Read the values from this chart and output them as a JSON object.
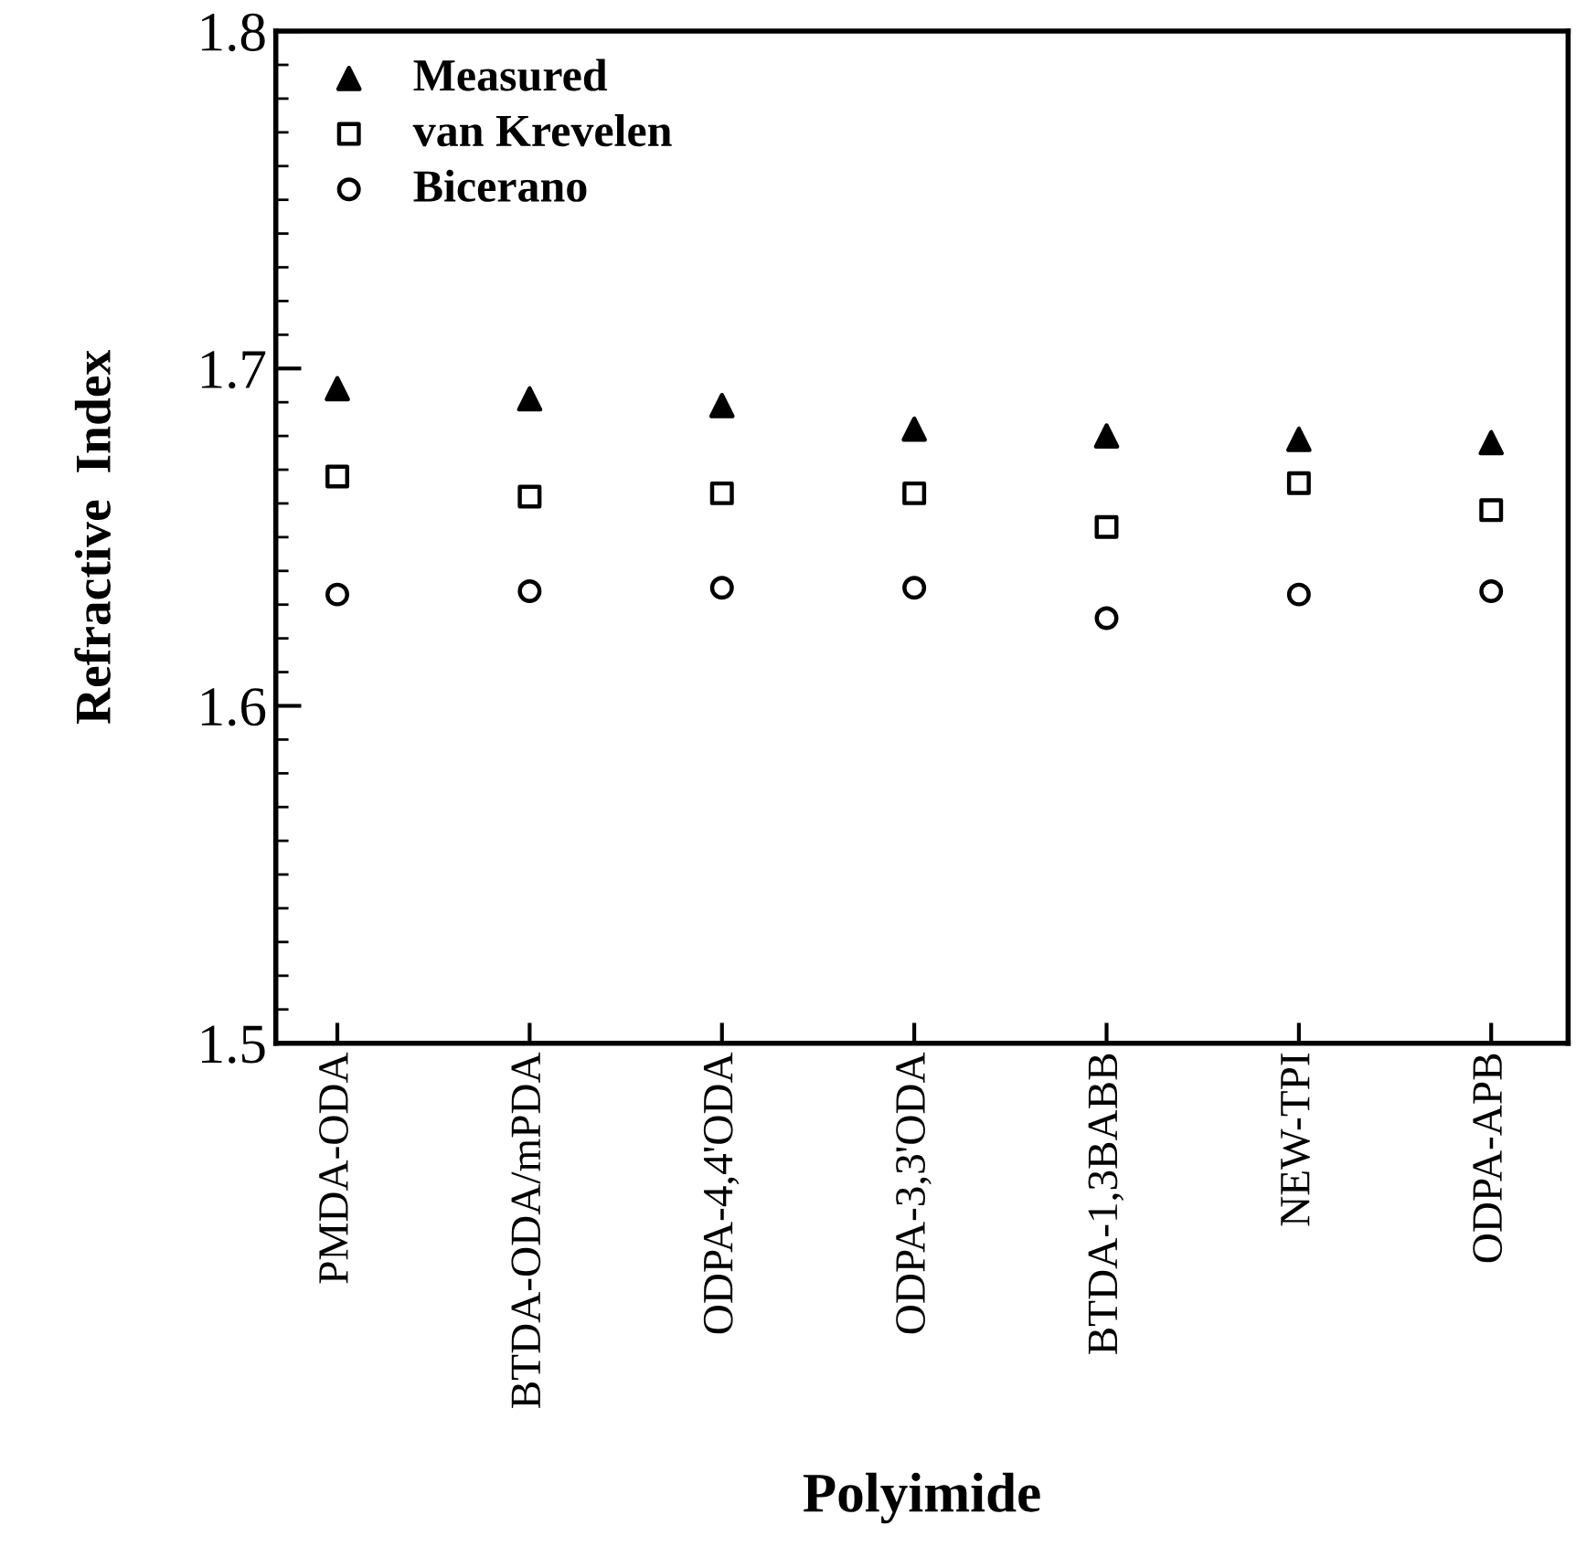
{
  "chart_data": {
    "type": "scatter",
    "xlabel": "Polyimide",
    "ylabel": "Refractive  Index",
    "categories": [
      "PMDA-ODA",
      "BTDA-ODA/mPDA",
      "ODPA-4,4'ODA",
      "ODPA-3,3'ODA",
      "BTDA-1,3BABB",
      "NEW-TPI",
      "ODPA-APB"
    ],
    "series": [
      {
        "name": "Measured",
        "color": "#000000",
        "marker": "triangle",
        "values": [
          1.694,
          1.691,
          1.689,
          1.682,
          1.68,
          1.679,
          1.678
        ]
      },
      {
        "name": "van Krevelen",
        "color": "#000000",
        "marker": "square",
        "values": [
          1.668,
          1.662,
          1.663,
          1.663,
          1.653,
          1.666,
          1.658
        ]
      },
      {
        "name": "Bicerano",
        "color": "#000000",
        "marker": "circle",
        "values": [
          1.633,
          1.634,
          1.635,
          1.635,
          1.626,
          1.633,
          1.634
        ]
      }
    ],
    "ylim": [
      1.5,
      1.8
    ],
    "yticks": [
      1.5,
      1.6,
      1.7,
      1.8
    ],
    "grid": false,
    "legend": "top left"
  }
}
